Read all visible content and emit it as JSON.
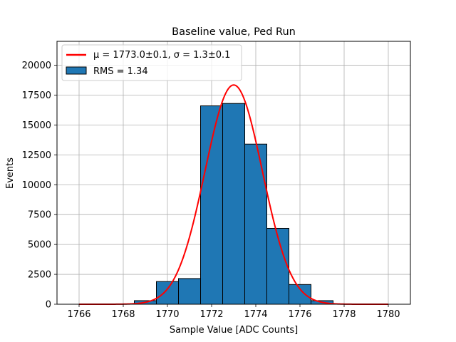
{
  "chart_data": {
    "type": "bar",
    "title": "Baseline value, Ped Run",
    "xlabel": "Sample Value [ADC Counts]",
    "ylabel": "Events",
    "xlim": [
      1765,
      1781
    ],
    "ylim": [
      0,
      22000
    ],
    "xticks": [
      1766,
      1768,
      1770,
      1772,
      1774,
      1776,
      1778,
      1780
    ],
    "yticks": [
      0,
      2500,
      5000,
      7500,
      10000,
      12500,
      15000,
      17500,
      20000
    ],
    "grid": true,
    "legend_position": "top-left",
    "histogram": {
      "name": "RMS = 1.34",
      "color": "#1f77b4",
      "edgecolor": "#000000",
      "bin_width": 1,
      "bin_starts": [
        1768.5,
        1769.5,
        1770.5,
        1771.5,
        1772.5,
        1773.5,
        1774.5,
        1775.5,
        1776.5
      ],
      "values": [
        300,
        1900,
        2150,
        16600,
        16800,
        13400,
        6350,
        1650,
        300
      ]
    },
    "fit": {
      "name_prefix": "μ = 1773.0±0.1, σ = 1.3±0.1",
      "color": "#ff0000",
      "mu": 1773.0,
      "sigma": 1.3,
      "amplitude": 18350,
      "x_range": [
        1766,
        1780
      ]
    }
  }
}
